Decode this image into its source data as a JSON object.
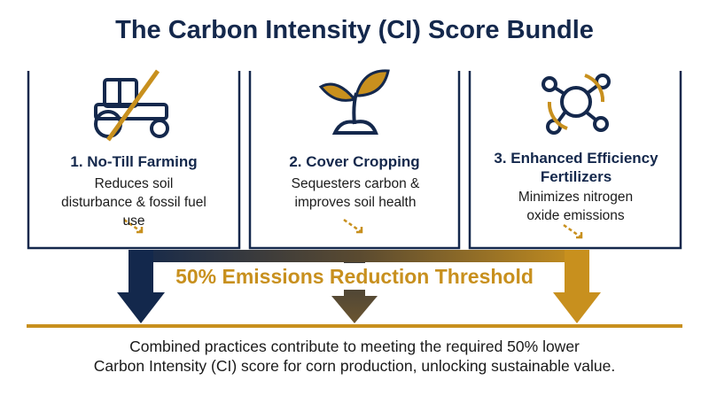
{
  "header": {
    "title": "The Carbon Intensity (CI) Score Bundle"
  },
  "cards": [
    {
      "title": "1. No-Till Farming",
      "description": "Reduces soil disturbance & fossil fuel use"
    },
    {
      "title": "2. Cover Cropping",
      "description": "Sequesters carbon & improves soil health"
    },
    {
      "title": "3. Enhanced Efficiency Fertilizers",
      "description": "Minimizes nitrogen oxide emissions"
    }
  ],
  "threshold": {
    "label": "50% Emissions Reduction Threshold"
  },
  "footer": {
    "lines": [
      "Combined practices contribute to meeting the required 50% lower",
      "Carbon Intensity (CI) score for corn production, unlocking sustainable value."
    ]
  }
}
